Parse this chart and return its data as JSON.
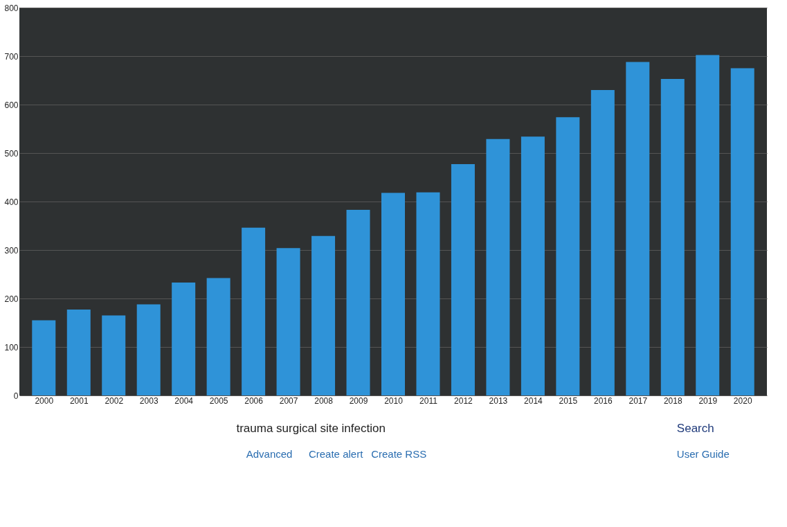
{
  "chart_data": {
    "type": "bar",
    "categories": [
      "2000",
      "2001",
      "2002",
      "2003",
      "2004",
      "2005",
      "2006",
      "2007",
      "2008",
      "2009",
      "2010",
      "2011",
      "2012",
      "2013",
      "2014",
      "2015",
      "2016",
      "2017",
      "2018",
      "2019",
      "2020"
    ],
    "values": [
      155,
      177,
      165,
      188,
      233,
      242,
      346,
      304,
      329,
      383,
      418,
      419,
      477,
      529,
      534,
      574,
      630,
      688,
      653,
      702,
      675
    ],
    "color": "#2f93d8",
    "ylim": [
      0,
      800
    ],
    "yticks": [
      0,
      100,
      200,
      300,
      400,
      500,
      600,
      700,
      800
    ],
    "grid": "y",
    "annotations": [
      "trauma surgical site infection",
      "Search",
      "Advanced",
      "Create alert",
      "Create RSS",
      "User Guide"
    ]
  }
}
